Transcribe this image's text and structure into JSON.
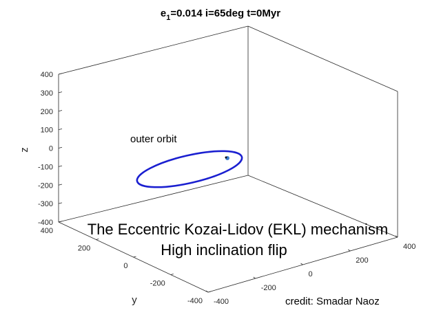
{
  "chart_data": {
    "type": "line",
    "projection": "3d",
    "title_parts": {
      "e": "e",
      "sub": "1",
      "rest": "=0.014  i=65deg  t=0Myr"
    },
    "xlabel": "",
    "ylabel": "y",
    "zlabel": "z",
    "xlim": [
      -400,
      400
    ],
    "ylim": [
      -400,
      400
    ],
    "zlim": [
      -400,
      400
    ],
    "x_ticks": [
      "-400",
      "-200",
      "0",
      "200",
      "400"
    ],
    "y_ticks": [
      "-400",
      "-200",
      "0",
      "200",
      "400"
    ],
    "z_ticks": [
      "-400",
      "-300",
      "-200",
      "-100",
      "0",
      "100",
      "200",
      "300",
      "400"
    ],
    "grid": false,
    "box": true,
    "series": [
      {
        "color": "#1a1fd0",
        "shape": "ellipse",
        "center": [
          0,
          0,
          0
        ],
        "radius_approx": 200
      }
    ],
    "inner_body_color": "#3a7fd0",
    "annotations": [
      "outer orbit"
    ]
  },
  "captions": {
    "line1": "The Eccentric Kozai-Lidov (EKL) mechanism",
    "line2": "High inclination flip",
    "credit": "credit: Smadar Naoz"
  }
}
